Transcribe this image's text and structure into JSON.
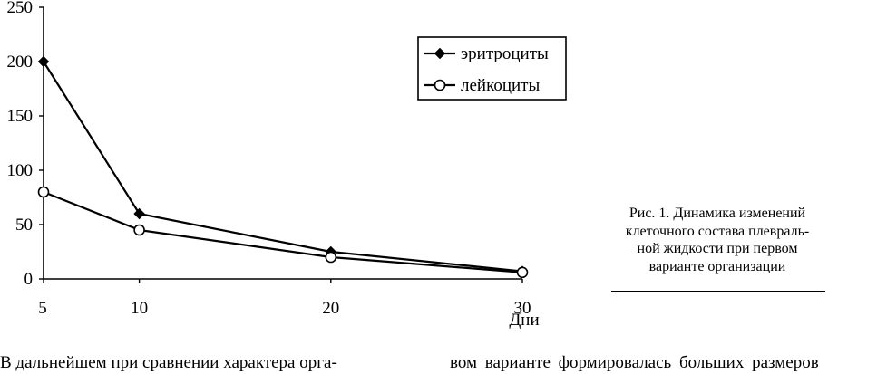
{
  "chart_data": {
    "type": "line",
    "x": [
      5,
      10,
      20,
      30
    ],
    "xlabel": "Дни",
    "ylabel": "",
    "title": "",
    "xticks": [
      5,
      10,
      20,
      30
    ],
    "yticks": [
      0,
      50,
      100,
      150,
      200,
      250
    ],
    "ylim": [
      0,
      250
    ],
    "grid": false,
    "legend_position": "top-right",
    "series": [
      {
        "name": "эритроциты",
        "marker": "filled-diamond",
        "values": [
          200,
          60,
          25,
          7
        ]
      },
      {
        "name": "лейкоциты",
        "marker": "open-circle",
        "values": [
          80,
          45,
          20,
          6
        ]
      }
    ]
  },
  "caption": {
    "lines": [
      "Рис. 1. Динамика изменений",
      "клеточного состава плевраль-",
      "ной жидкости при первом",
      "варианте организации"
    ]
  },
  "body_text": {
    "left": "В дальнейшем при сравнении характера орга-",
    "right": "вом варианте формировалась больших размеров"
  }
}
